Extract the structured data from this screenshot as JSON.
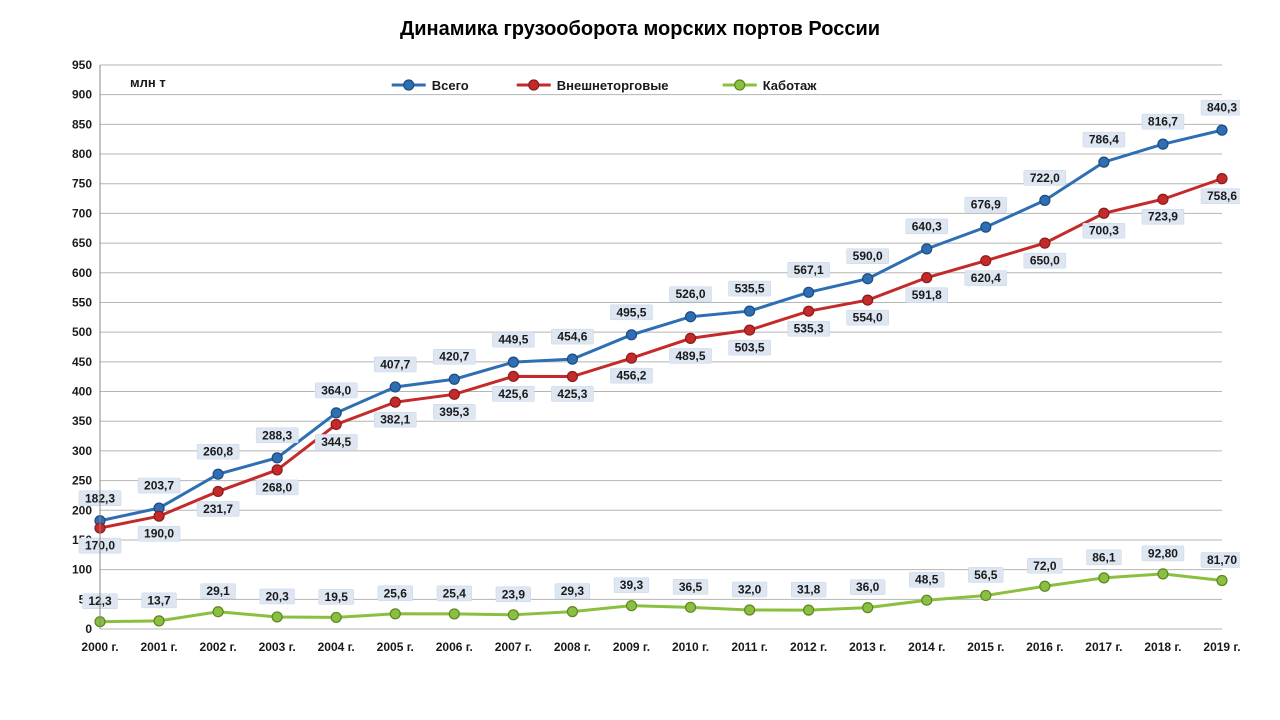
{
  "title": "Динамика грузооборота морских портов России",
  "unit_label": "млн т",
  "chart": {
    "type": "line",
    "background_color": "#ffffff",
    "grid_color": "#b5b5b5",
    "title_fontsize": 20,
    "axis_label_fontsize": 12,
    "data_label_fontsize": 12,
    "data_label_bg": "#dde6f1",
    "data_label_border": "#c6d4e6",
    "ylim": [
      0,
      950
    ],
    "ytick_step": 50,
    "categories": [
      "2000 г.",
      "2001 г.",
      "2002 г.",
      "2003 г.",
      "2004 г.",
      "2005 г.",
      "2006 г.",
      "2007 г.",
      "2008 г.",
      "2009 г.",
      "2010 г.",
      "2011 г.",
      "2012 г.",
      "2013 г.",
      "2014 г.",
      "2015 г.",
      "2016 г.",
      "2017 г.",
      "2018 г.",
      "2019 г."
    ],
    "legend": {
      "position": "top",
      "items": [
        {
          "key": "total",
          "label": "Всего"
        },
        {
          "key": "foreign",
          "label": "Внешнеторговые"
        },
        {
          "key": "cabotage",
          "label": "Каботаж"
        }
      ]
    },
    "series": {
      "total": {
        "label": "Всего",
        "color": "#2e6fb4",
        "line_width": 3,
        "marker": "circle",
        "marker_size": 5,
        "marker_fill": "#2e6fb4",
        "marker_stroke": "#1c4b7e",
        "values": [
          182.3,
          203.7,
          260.8,
          288.3,
          364.0,
          407.7,
          420.7,
          449.5,
          454.6,
          495.5,
          526.0,
          535.5,
          567.1,
          590.0,
          640.3,
          676.9,
          722.0,
          786.4,
          816.7,
          840.3
        ],
        "value_labels": [
          "182,3",
          "203,7",
          "260,8",
          "288,3",
          "364,0",
          "407,7",
          "420,7",
          "449,5",
          "454,6",
          "495,5",
          "526,0",
          "535,5",
          "567,1",
          "590,0",
          "640,3",
          "676,9",
          "722,0",
          "786,4",
          "816,7",
          "840,3"
        ],
        "label_offset_y": -18
      },
      "foreign": {
        "label": "Внешнеторговые",
        "color": "#c42a2a",
        "line_width": 3,
        "marker": "circle",
        "marker_size": 5,
        "marker_fill": "#c42a2a",
        "marker_stroke": "#8a1c1c",
        "values": [
          170.0,
          190.0,
          231.7,
          268.0,
          344.5,
          382.1,
          395.3,
          425.6,
          425.3,
          456.2,
          489.5,
          503.5,
          535.3,
          554.0,
          591.8,
          620.4,
          650.0,
          700.3,
          723.9,
          758.6
        ],
        "value_labels": [
          "170,0",
          "190,0",
          "231,7",
          "268,0",
          "344,5",
          "382,1",
          "395,3",
          "425,6",
          "425,3",
          "456,2",
          "489,5",
          "503,5",
          "535,3",
          "554,0",
          "591,8",
          "620,4",
          "650,0",
          "700,3",
          "723,9",
          "758,6"
        ],
        "label_offset_y": 22
      },
      "cabotage": {
        "label": "Каботаж",
        "color": "#8bbf3f",
        "line_width": 3,
        "marker": "circle",
        "marker_size": 5,
        "marker_fill": "#8bbf3f",
        "marker_stroke": "#5c8524",
        "values": [
          12.3,
          13.7,
          29.1,
          20.3,
          19.5,
          25.6,
          25.4,
          23.9,
          29.3,
          39.3,
          36.5,
          32.0,
          31.8,
          36.0,
          48.5,
          56.5,
          72.0,
          86.1,
          92.8,
          81.7
        ],
        "value_labels": [
          "12,3",
          "13,7",
          "29,1",
          "20,3",
          "19,5",
          "25,6",
          "25,4",
          "23,9",
          "29,3",
          "39,3",
          "36,5",
          "32,0",
          "31,8",
          "36,0",
          "48,5",
          "56,5",
          "72,0",
          "86,1",
          "92,80",
          "81,70"
        ],
        "label_offset_y": -16
      }
    }
  }
}
